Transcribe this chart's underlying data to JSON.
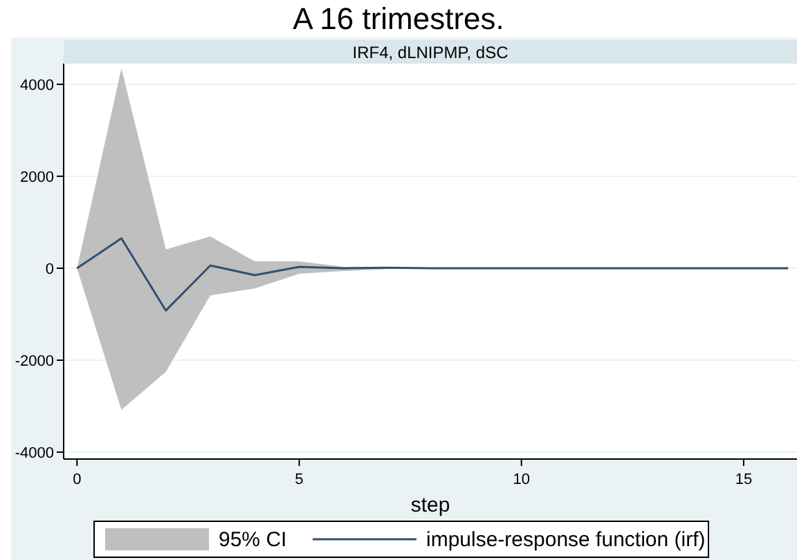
{
  "chart_data": {
    "type": "line",
    "title": "A 16 trimestres.",
    "subtitle": "IRF4, dLNIPMP, dSC",
    "xlabel": "step",
    "annotations": [
      "95% CI"
    ],
    "x": [
      0,
      1,
      2,
      3,
      4,
      5,
      6,
      7,
      8,
      9,
      10,
      11,
      12,
      13,
      14,
      15,
      16
    ],
    "xlim": [
      -0.3,
      16.2
    ],
    "xticks": [
      0,
      5,
      10,
      15
    ],
    "ylim": [
      -4150,
      4450
    ],
    "yticks": [
      -4000,
      -2000,
      0,
      2000,
      4000
    ],
    "grid": "y",
    "legend": "bottom",
    "series": [
      {
        "name": "impulse-response function (irf)",
        "color": "#2f5072",
        "values": [
          0,
          650,
          -920,
          60,
          -150,
          30,
          0,
          10,
          0,
          0,
          0,
          0,
          0,
          0,
          0,
          0,
          0
        ],
        "lower": [
          0,
          -3080,
          -2250,
          -590,
          -440,
          -120,
          -60,
          -20,
          0,
          0,
          0,
          0,
          0,
          0,
          0,
          0,
          0
        ],
        "upper": [
          0,
          4350,
          410,
          690,
          150,
          150,
          30,
          10,
          0,
          0,
          0,
          0,
          0,
          0,
          0,
          0,
          0
        ]
      }
    ]
  }
}
